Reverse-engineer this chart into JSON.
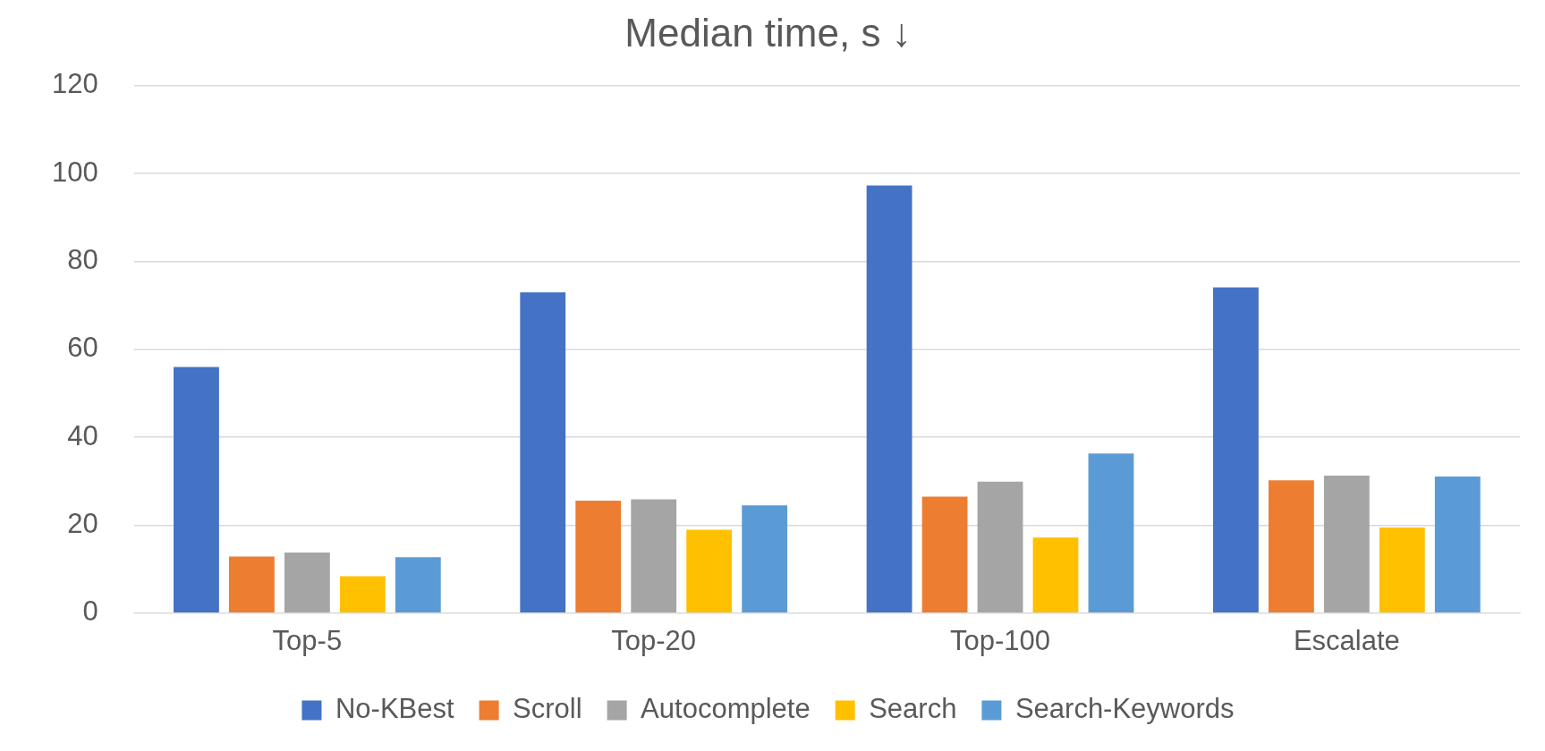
{
  "chart_data": {
    "type": "bar",
    "title": "Median time, s ↓",
    "categories": [
      "Top-5",
      "Top-20",
      "Top-100",
      "Escalate"
    ],
    "series": [
      {
        "name": "No-KBest",
        "color": "#4472c4",
        "values": [
          56,
          73,
          97.3,
          74.1
        ]
      },
      {
        "name": "Scroll",
        "color": "#ed7d31",
        "values": [
          12.9,
          25.6,
          26.5,
          30.2
        ]
      },
      {
        "name": "Autocomplete",
        "color": "#a5a5a5",
        "values": [
          13.8,
          25.9,
          29.9,
          31.3
        ]
      },
      {
        "name": "Search",
        "color": "#ffc000",
        "values": [
          8.4,
          19,
          17.2,
          19.5
        ]
      },
      {
        "name": "Search-Keywords",
        "color": "#5b9bd5",
        "values": [
          12.7,
          24.5,
          36.3,
          31.1
        ]
      }
    ],
    "ylim": [
      0,
      120
    ],
    "yticks": [
      0,
      20,
      40,
      60,
      80,
      100,
      120
    ],
    "grid": "y",
    "legend": "bottom"
  }
}
